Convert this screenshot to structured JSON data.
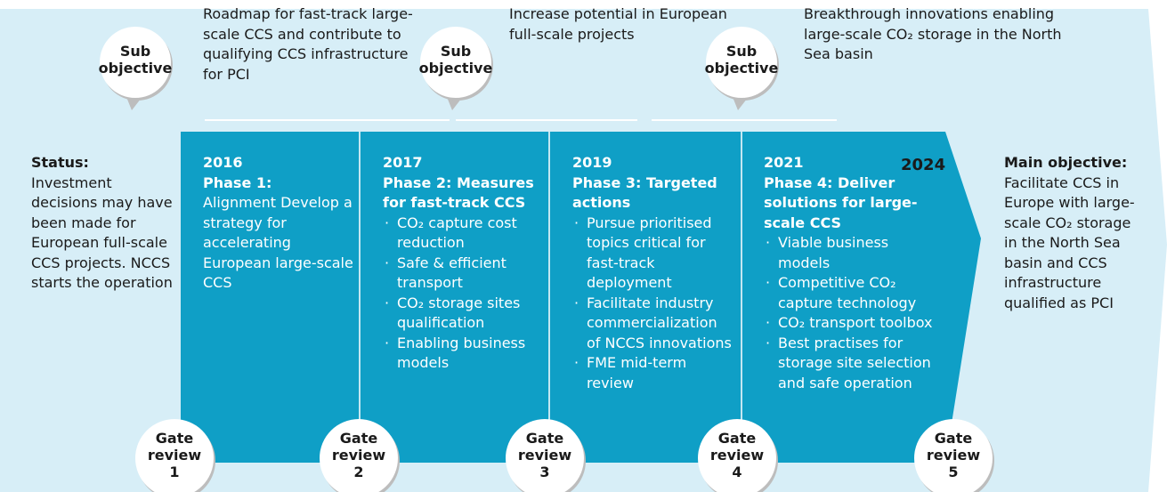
{
  "sub_objectives": [
    {
      "badge": "Sub objective",
      "text": "Roadmap for fast-track large-scale CCS and contribute to qualifying CCS infrastructure for PCI"
    },
    {
      "badge": "Sub objective",
      "text": "Increase potential in European full-scale projects"
    },
    {
      "badge": "Sub objective",
      "text": "Breakthrough innovations enabling large-scale CO₂ storage in the North Sea basin"
    }
  ],
  "status": {
    "title": "Status:",
    "text": "Investment decisions may have been made for European full-scale CCS projects. NCCS starts the operation"
  },
  "phases": [
    {
      "year": "2016",
      "title": "Phase 1:",
      "text": "Alignment Develop a strategy for accelerating European large-scale CCS",
      "items": []
    },
    {
      "year": "2017",
      "title": "Phase 2: Measures for fast-track CCS",
      "items": [
        "CO₂ capture cost reduction",
        "Safe & efficient transport",
        "CO₂ storage sites qualification",
        "Enabling business models"
      ]
    },
    {
      "year": "2019",
      "title": "Phase 3: Targeted actions",
      "items": [
        "Pursue prioritised topics critical for fast-track deployment",
        "Facilitate industry commercialization of NCCS innovations",
        "FME mid-term review"
      ]
    },
    {
      "year": "2021",
      "title": "Phase 4: Deliver solutions for large-scale CCS",
      "items": [
        "Viable business models",
        "Competitive CO₂ capture technology",
        "CO₂ transport toolbox",
        "Best practises for storage site selection and safe operation"
      ]
    }
  ],
  "end_year": "2024",
  "main_objective": {
    "title": "Main objective:",
    "text": "Facilitate CCS in Europe with large-scale CO₂ storage in the North Sea basin and CCS infrastructure qualified as PCI"
  },
  "gate_reviews": [
    {
      "label": "Gate review",
      "number": "1"
    },
    {
      "label": "Gate review",
      "number": "2"
    },
    {
      "label": "Gate review",
      "number": "3"
    },
    {
      "label": "Gate review",
      "number": "4"
    },
    {
      "label": "Gate review",
      "number": "5"
    }
  ]
}
